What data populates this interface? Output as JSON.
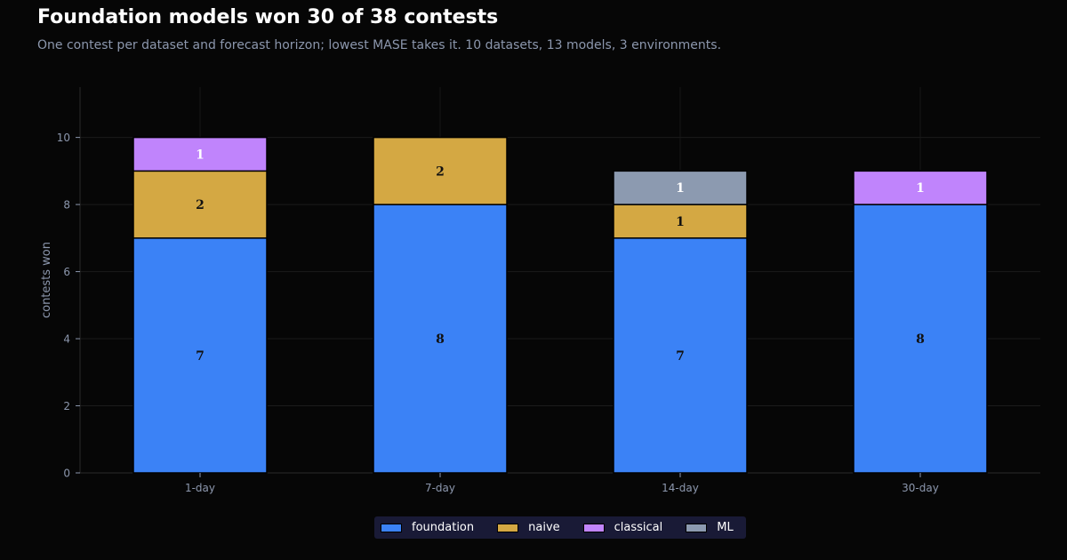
{
  "header": {
    "title": "Foundation models won 30 of 38 contests",
    "subtitle": "One contest per dataset and forecast horizon; lowest MASE takes it. 10 datasets, 13 models, 3 environments."
  },
  "chart_data": {
    "type": "bar",
    "stacked": true,
    "categories": [
      "1-day",
      "7-day",
      "14-day",
      "30-day"
    ],
    "series": [
      {
        "name": "foundation",
        "values": [
          7,
          8,
          7,
          8
        ],
        "color": "#3b82f6",
        "label_color": "#111111"
      },
      {
        "name": "naive",
        "values": [
          2,
          2,
          1,
          0
        ],
        "color": "#d4a843",
        "label_color": "#111111"
      },
      {
        "name": "classical",
        "values": [
          1,
          0,
          0,
          1
        ],
        "color": "#c084fc",
        "label_color": "#ffffff"
      },
      {
        "name": "ML",
        "values": [
          0,
          0,
          1,
          0
        ],
        "color": "#8c9ab0",
        "label_color": "#ffffff"
      }
    ],
    "xlabel": "",
    "ylabel": "contests won",
    "ylim": [
      0,
      11.5
    ],
    "yticks": [
      0,
      2,
      4,
      6,
      8,
      10
    ],
    "grid": true,
    "legend_position": "bottom-center"
  }
}
